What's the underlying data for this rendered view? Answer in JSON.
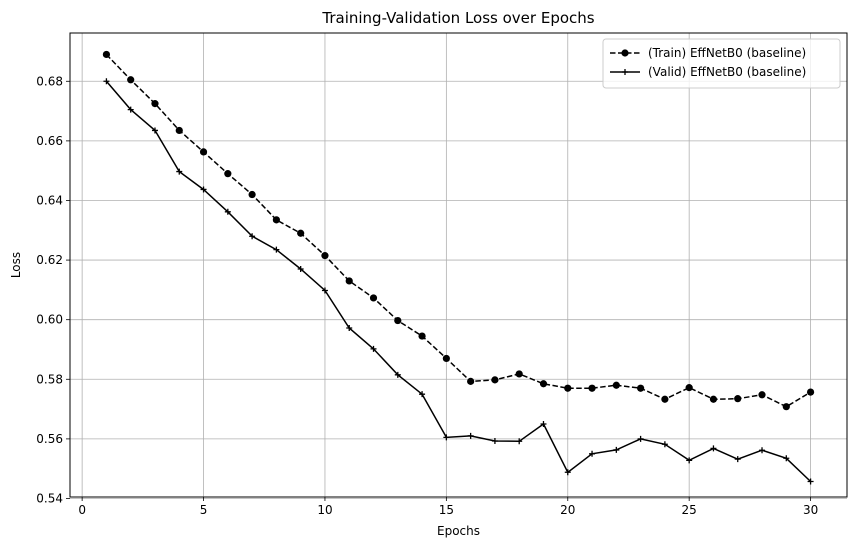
{
  "chart_data": {
    "type": "line",
    "title": "Training-Validation Loss over Epochs",
    "xlabel": "Epochs",
    "ylabel": "Loss",
    "xlim": [
      -0.5,
      31.5
    ],
    "ylim": [
      0.5405,
      0.6962
    ],
    "xticks": [
      0,
      5,
      10,
      15,
      20,
      25,
      30
    ],
    "yticks": [
      0.54,
      0.56,
      0.58,
      0.6,
      0.62,
      0.64,
      0.66,
      0.68
    ],
    "ytick_labels": [
      "0.54",
      "0.56",
      "0.58",
      "0.60",
      "0.62",
      "0.64",
      "0.66",
      "0.68"
    ],
    "grid": true,
    "legend_position": "top-right",
    "x": [
      1,
      2,
      3,
      4,
      5,
      6,
      7,
      8,
      9,
      10,
      11,
      12,
      13,
      14,
      15,
      16,
      17,
      18,
      19,
      20,
      21,
      22,
      23,
      24,
      25,
      26,
      27,
      28,
      29,
      30
    ],
    "series": [
      {
        "name": "(Train) EffNetB0 (baseline)",
        "color": "#000000",
        "line_style": "dashed",
        "marker": "circle",
        "values": [
          0.689,
          0.6805,
          0.6725,
          0.6635,
          0.6563,
          0.649,
          0.642,
          0.6335,
          0.629,
          0.6215,
          0.613,
          0.6073,
          0.5997,
          0.5945,
          0.587,
          0.5793,
          0.5798,
          0.5818,
          0.5785,
          0.577,
          0.577,
          0.578,
          0.577,
          0.5733,
          0.5772,
          0.5733,
          0.5735,
          0.5748,
          0.5708,
          0.5757
        ]
      },
      {
        "name": "(Valid) EffNetB0 (baseline)",
        "color": "#000000",
        "line_style": "solid",
        "marker": "plus",
        "values": [
          0.68,
          0.6705,
          0.6635,
          0.6497,
          0.6437,
          0.6362,
          0.628,
          0.6235,
          0.617,
          0.6098,
          0.5972,
          0.5902,
          0.5815,
          0.575,
          0.5605,
          0.561,
          0.5593,
          0.5592,
          0.565,
          0.5488,
          0.555,
          0.5563,
          0.56,
          0.5582,
          0.5528,
          0.5568,
          0.5532,
          0.5562,
          0.5535,
          0.5457
        ]
      }
    ]
  }
}
